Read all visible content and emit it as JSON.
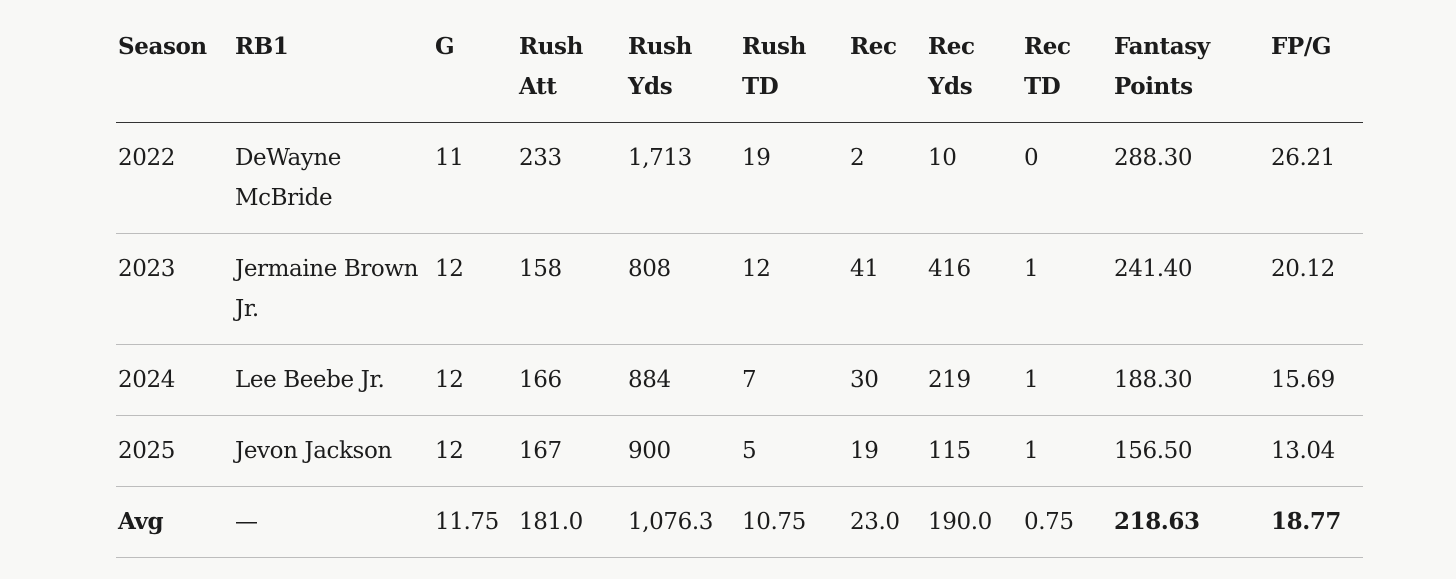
{
  "table": {
    "headers": [
      "Season",
      "RB1",
      "G",
      "Rush Att",
      "Rush Yds",
      "Rush TD",
      "Rec",
      "Rec Yds",
      "Rec TD",
      "Fantasy Points",
      "FP/G"
    ],
    "rows": [
      [
        "2022",
        "DeWayne McBride",
        "11",
        "233",
        "1,713",
        "19",
        "2",
        "10",
        "0",
        "288.30",
        "26.21"
      ],
      [
        "2023",
        "Jermaine Brown Jr.",
        "12",
        "158",
        "808",
        "12",
        "41",
        "416",
        "1",
        "241.40",
        "20.12"
      ],
      [
        "2024",
        "Lee Beebe Jr.",
        "12",
        "166",
        "884",
        "7",
        "30",
        "219",
        "1",
        "188.30",
        "15.69"
      ],
      [
        "2025",
        "Jevon Jackson",
        "12",
        "167",
        "900",
        "5",
        "19",
        "115",
        "1",
        "156.50",
        "13.04"
      ]
    ],
    "avg_row": [
      "Avg",
      "—",
      "11.75",
      "181.0",
      "1,076.3",
      "10.75",
      "23.0",
      "190.0",
      "0.75",
      "218.63",
      "18.77"
    ]
  }
}
